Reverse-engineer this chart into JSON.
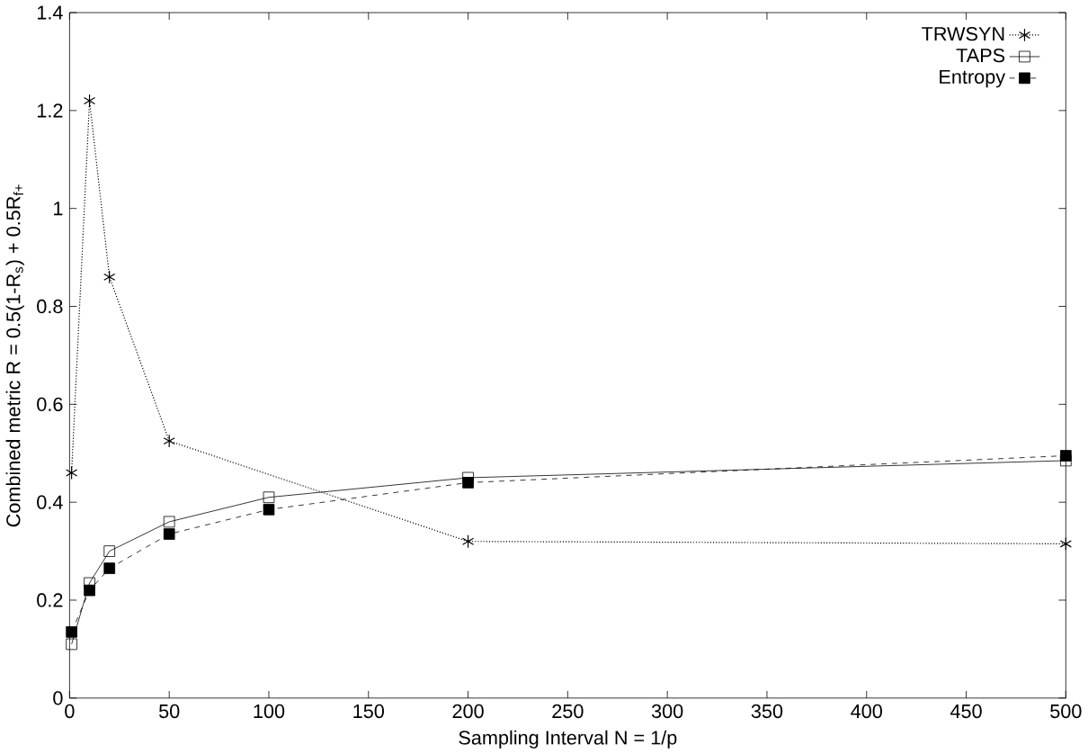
{
  "chart_data": {
    "type": "line",
    "xlabel": "Sampling Interval N = 1/p",
    "ylabel": "Combined metric R = 0.5(1-R$_{s}$) + 0.5R$_{f+}$",
    "x": [
      1,
      10,
      20,
      50,
      100,
      200,
      500
    ],
    "series": [
      {
        "name": "TRWSYN",
        "color": "#000000",
        "marker": "cross",
        "line_style": "dotted",
        "values": [
          0.46,
          1.22,
          0.86,
          0.525,
          null,
          0.32,
          0.315
        ]
      },
      {
        "name": "TAPS",
        "color": "#000000",
        "marker": "square",
        "line_style": "solid",
        "values": [
          0.11,
          0.235,
          0.3,
          0.36,
          0.41,
          0.45,
          0.485
        ]
      },
      {
        "name": "Entropy",
        "color": "#000000",
        "marker": "square",
        "line_style": "dashed",
        "values": [
          0.135,
          0.22,
          0.265,
          0.335,
          0.385,
          0.44,
          0.495
        ]
      }
    ],
    "xlim": [
      0,
      500
    ],
    "ylim": [
      0,
      1.4
    ],
    "xticks": [
      0,
      50,
      100,
      150,
      200,
      250,
      300,
      350,
      400,
      450,
      500
    ],
    "yticks": [
      0,
      0.2,
      0.4,
      0.6,
      0.8,
      1,
      1.2,
      1.4
    ],
    "grid": false,
    "legend": "top right"
  }
}
